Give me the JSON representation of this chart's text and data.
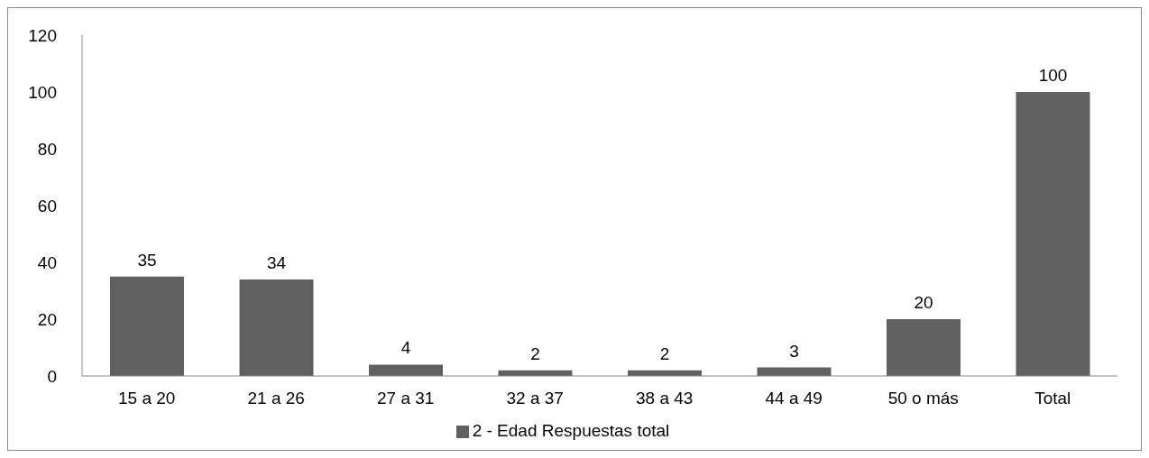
{
  "chart_data": {
    "type": "bar",
    "categories": [
      "15 a 20",
      "21 a 26",
      "27 a 31",
      "32 a 37",
      "38 a 43",
      "44 a 49",
      "50 o más",
      "Total"
    ],
    "series": [
      {
        "name": "2 - Edad Respuestas total",
        "color": "#606060",
        "values": [
          35,
          34,
          4,
          2,
          2,
          3,
          20,
          100
        ]
      }
    ],
    "ylim": [
      0,
      120
    ],
    "yticks": [
      0,
      20,
      40,
      60,
      80,
      100,
      120
    ],
    "data_labels": true,
    "legend": "bottom"
  }
}
